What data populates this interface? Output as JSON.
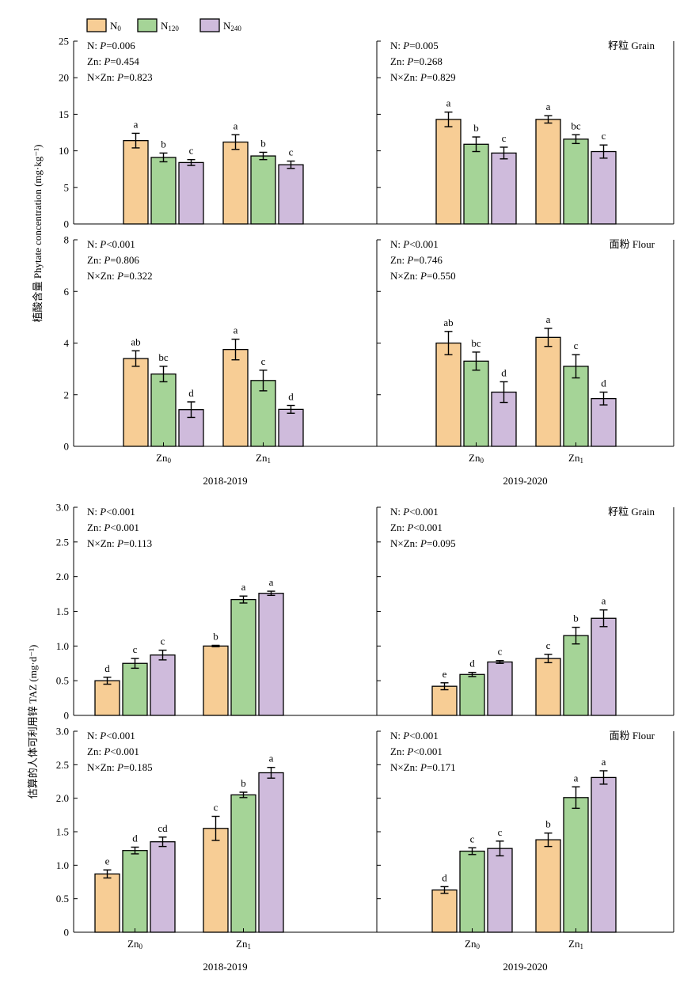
{
  "legend": [
    {
      "base": "N",
      "sub": "0",
      "color": "#f7cd95"
    },
    {
      "base": "N",
      "sub": "120",
      "color": "#a5d497"
    },
    {
      "base": "N",
      "sub": "240",
      "color": "#cfbbdc"
    }
  ],
  "y_labels": {
    "top": "植酸含量 Phytate concentration (mg·kg⁻¹)",
    "bottom": "估算的人体可利用锌 TAZ (mg·d⁻¹)"
  },
  "chart_data": [
    {
      "type": "bar",
      "panel": "phytate-grain-2018-2019",
      "categories": [
        "Zn0",
        "Zn1"
      ],
      "ylim": [
        0,
        25
      ],
      "yticks": [
        0,
        5,
        10,
        15,
        20,
        25
      ],
      "ytick_labels": [
        "0",
        "5",
        "10",
        "15",
        "20",
        "25"
      ],
      "xlabel": "",
      "label": "",
      "stats": [
        {
          "prefix": "N: ",
          "p": "P",
          "rest": "=0.006"
        },
        {
          "prefix": "Zn: ",
          "p": "P",
          "rest": "=0.454"
        },
        {
          "prefix": "N×Zn: ",
          "p": "P",
          "rest": "=0.823"
        }
      ],
      "series": [
        {
          "values": [
            11.4,
            11.2
          ],
          "errors": [
            1.0,
            1.0
          ],
          "letters": [
            "a",
            "a"
          ]
        },
        {
          "values": [
            9.1,
            9.3
          ],
          "errors": [
            0.6,
            0.5
          ],
          "letters": [
            "b",
            "b"
          ]
        },
        {
          "values": [
            8.4,
            8.1
          ],
          "errors": [
            0.4,
            0.5
          ],
          "letters": [
            "c",
            "c"
          ]
        }
      ]
    },
    {
      "type": "bar",
      "panel": "phytate-grain-2019-2020",
      "categories": [
        "Zn0",
        "Zn1"
      ],
      "ylim": [
        0,
        25
      ],
      "yticks": [
        0,
        5,
        10,
        15,
        20,
        25
      ],
      "ytick_labels": [],
      "xlabel": "",
      "label": "籽粒 Grain",
      "stats": [
        {
          "prefix": "N: ",
          "p": "P",
          "rest": "=0.005"
        },
        {
          "prefix": "Zn: ",
          "p": "P",
          "rest": "=0.268"
        },
        {
          "prefix": "N×Zn: ",
          "p": "P",
          "rest": "=0.829"
        }
      ],
      "series": [
        {
          "values": [
            14.3,
            14.3
          ],
          "errors": [
            1.0,
            0.5
          ],
          "letters": [
            "a",
            "a"
          ]
        },
        {
          "values": [
            10.9,
            11.6
          ],
          "errors": [
            1.0,
            0.6
          ],
          "letters": [
            "b",
            "bc"
          ]
        },
        {
          "values": [
            9.7,
            9.9
          ],
          "errors": [
            0.8,
            0.9
          ],
          "letters": [
            "c",
            "c"
          ]
        }
      ]
    },
    {
      "type": "bar",
      "panel": "phytate-flour-2018-2019",
      "categories": [
        "Zn0",
        "Zn1"
      ],
      "ylim": [
        0,
        8
      ],
      "yticks": [
        0,
        2,
        4,
        6,
        8
      ],
      "ytick_labels": [
        "0",
        "2",
        "4",
        "6",
        "8"
      ],
      "xlabel": "2018-2019",
      "label": "",
      "stats": [
        {
          "prefix": "N: ",
          "p": "P",
          "rest": "<0.001"
        },
        {
          "prefix": "Zn: ",
          "p": "P",
          "rest": "=0.806"
        },
        {
          "prefix": "N×Zn: ",
          "p": "P",
          "rest": "=0.322"
        }
      ],
      "series": [
        {
          "values": [
            3.4,
            3.75
          ],
          "errors": [
            0.3,
            0.4
          ],
          "letters": [
            "ab",
            "a"
          ]
        },
        {
          "values": [
            2.8,
            2.55
          ],
          "errors": [
            0.3,
            0.4
          ],
          "letters": [
            "bc",
            "c"
          ]
        },
        {
          "values": [
            1.42,
            1.43
          ],
          "errors": [
            0.3,
            0.15
          ],
          "letters": [
            "d",
            "d"
          ]
        }
      ]
    },
    {
      "type": "bar",
      "panel": "phytate-flour-2019-2020",
      "categories": [
        "Zn0",
        "Zn1"
      ],
      "ylim": [
        0,
        8
      ],
      "yticks": [
        0,
        2,
        4,
        6,
        8
      ],
      "ytick_labels": [],
      "xlabel": "2019-2020",
      "label": "面粉 Flour",
      "stats": [
        {
          "prefix": "N: ",
          "p": "P",
          "rest": "<0.001"
        },
        {
          "prefix": "Zn: ",
          "p": "P",
          "rest": "=0.746"
        },
        {
          "prefix": "N×Zn: ",
          "p": "P",
          "rest": "=0.550"
        }
      ],
      "series": [
        {
          "values": [
            4.0,
            4.22
          ],
          "errors": [
            0.45,
            0.35
          ],
          "letters": [
            "ab",
            "a"
          ]
        },
        {
          "values": [
            3.3,
            3.1
          ],
          "errors": [
            0.35,
            0.45
          ],
          "letters": [
            "bc",
            "c"
          ]
        },
        {
          "values": [
            2.1,
            1.85
          ],
          "errors": [
            0.4,
            0.25
          ],
          "letters": [
            "d",
            "d"
          ]
        }
      ]
    },
    {
      "type": "bar",
      "panel": "taz-grain-2018-2019",
      "categories": [
        "Zn0",
        "Zn1"
      ],
      "ylim": [
        0,
        3
      ],
      "yticks": [
        0,
        0.5,
        1,
        1.5,
        2,
        2.5,
        3
      ],
      "ytick_labels": [
        "0",
        "0.5",
        "1.0",
        "1.5",
        "2.0",
        "2.5",
        "3.0"
      ],
      "xlabel": "",
      "label": "",
      "stats": [
        {
          "prefix": "N: ",
          "p": "P",
          "rest": "<0.001"
        },
        {
          "prefix": "Zn: ",
          "p": "P",
          "rest": "<0.001"
        },
        {
          "prefix": "N×Zn: ",
          "p": "P",
          "rest": "=0.113"
        }
      ],
      "series": [
        {
          "values": [
            0.5,
            1.0
          ],
          "errors": [
            0.05,
            0.01
          ],
          "letters": [
            "d",
            "b"
          ]
        },
        {
          "values": [
            0.75,
            1.67
          ],
          "errors": [
            0.07,
            0.05
          ],
          "letters": [
            "c",
            "a"
          ]
        },
        {
          "values": [
            0.87,
            1.76
          ],
          "errors": [
            0.07,
            0.03
          ],
          "letters": [
            "c",
            "a"
          ]
        }
      ]
    },
    {
      "type": "bar",
      "panel": "taz-grain-2019-2020",
      "categories": [
        "Zn0",
        "Zn1"
      ],
      "ylim": [
        0,
        3
      ],
      "yticks": [
        0,
        0.5,
        1,
        1.5,
        2,
        2.5,
        3
      ],
      "ytick_labels": [],
      "xlabel": "",
      "label": "籽粒 Grain",
      "stats": [
        {
          "prefix": "N: ",
          "p": "P",
          "rest": "<0.001"
        },
        {
          "prefix": "Zn: ",
          "p": "P",
          "rest": "<0.001"
        },
        {
          "prefix": "N×Zn: ",
          "p": "P",
          "rest": "=0.095"
        }
      ],
      "series": [
        {
          "values": [
            0.42,
            0.82
          ],
          "errors": [
            0.05,
            0.06
          ],
          "letters": [
            "e",
            "c"
          ]
        },
        {
          "values": [
            0.59,
            1.15
          ],
          "errors": [
            0.03,
            0.12
          ],
          "letters": [
            "d",
            "b"
          ]
        },
        {
          "values": [
            0.77,
            1.4
          ],
          "errors": [
            0.02,
            0.12
          ],
          "letters": [
            "c",
            "a"
          ]
        }
      ]
    },
    {
      "type": "bar",
      "panel": "taz-flour-2018-2019",
      "categories": [
        "Zn0",
        "Zn1"
      ],
      "ylim": [
        0,
        3
      ],
      "yticks": [
        0,
        0.5,
        1,
        1.5,
        2,
        2.5,
        3
      ],
      "ytick_labels": [
        "0",
        "0.5",
        "1.0",
        "1.5",
        "2.0",
        "2.5",
        "3.0"
      ],
      "xlabel": "2018-2019",
      "label": "",
      "stats": [
        {
          "prefix": "N: ",
          "p": "P",
          "rest": "<0.001"
        },
        {
          "prefix": "Zn: ",
          "p": "P",
          "rest": "<0.001"
        },
        {
          "prefix": "N×Zn: ",
          "p": "P",
          "rest": "=0.185"
        }
      ],
      "series": [
        {
          "values": [
            0.87,
            1.55
          ],
          "errors": [
            0.06,
            0.18
          ],
          "letters": [
            "e",
            "c"
          ]
        },
        {
          "values": [
            1.22,
            2.05
          ],
          "errors": [
            0.05,
            0.04
          ],
          "letters": [
            "d",
            "b"
          ]
        },
        {
          "values": [
            1.35,
            2.38
          ],
          "errors": [
            0.07,
            0.08
          ],
          "letters": [
            "cd",
            "a"
          ]
        }
      ]
    },
    {
      "type": "bar",
      "panel": "taz-flour-2019-2020",
      "categories": [
        "Zn0",
        "Zn1"
      ],
      "ylim": [
        0,
        3
      ],
      "yticks": [
        0,
        0.5,
        1,
        1.5,
        2,
        2.5,
        3
      ],
      "ytick_labels": [],
      "xlabel": "2019-2020",
      "label": "面粉 Flour",
      "stats": [
        {
          "prefix": "N: ",
          "p": "P",
          "rest": "<0.001"
        },
        {
          "prefix": "Zn: ",
          "p": "P",
          "rest": "<0.001"
        },
        {
          "prefix": "N×Zn: ",
          "p": "P",
          "rest": "=0.171"
        }
      ],
      "series": [
        {
          "values": [
            0.63,
            1.38
          ],
          "errors": [
            0.05,
            0.1
          ],
          "letters": [
            "d",
            "b"
          ]
        },
        {
          "values": [
            1.21,
            2.01
          ],
          "errors": [
            0.05,
            0.16
          ],
          "letters": [
            "c",
            "a"
          ]
        },
        {
          "values": [
            1.25,
            2.31
          ],
          "errors": [
            0.11,
            0.1
          ],
          "letters": [
            "c",
            "a"
          ]
        }
      ]
    }
  ]
}
